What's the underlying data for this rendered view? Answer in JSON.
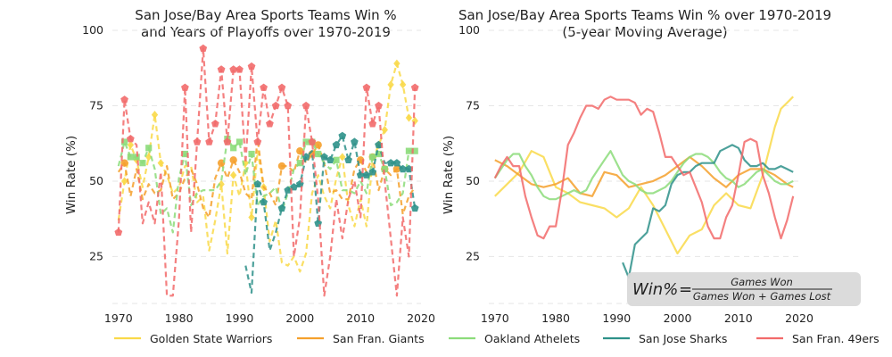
{
  "chart_data": [
    {
      "type": "line",
      "title_lines": [
        "San Jose/Bay Area Sports Teams Win %",
        "and Years of Playoffs over 1970-2019"
      ],
      "xlabel": "",
      "ylabel": "Win Rate (%)",
      "xlim": [
        1969,
        2020
      ],
      "ylim": [
        5,
        100
      ],
      "xticks": [
        1970,
        1980,
        1990,
        2000,
        2010,
        2020
      ],
      "yticks": [
        25,
        50,
        75,
        100
      ],
      "line_style": "dashed",
      "markers_note": "filled markers mark playoff years",
      "series": [
        {
          "name": "Golden State Warriors",
          "color": "#f9d949",
          "marker": "diamond",
          "x": [
            1970,
            1971,
            1972,
            1973,
            1974,
            1975,
            1976,
            1977,
            1978,
            1979,
            1980,
            1981,
            1982,
            1983,
            1984,
            1985,
            1986,
            1987,
            1988,
            1989,
            1990,
            1991,
            1992,
            1993,
            1994,
            1995,
            1996,
            1997,
            1998,
            1999,
            2000,
            2001,
            2002,
            2003,
            2004,
            2005,
            2006,
            2007,
            2008,
            2009,
            2010,
            2011,
            2012,
            2013,
            2014,
            2015,
            2016,
            2017,
            2018,
            2019
          ],
          "y": [
            37,
            50,
            62,
            57,
            48,
            58,
            72,
            56,
            52,
            46,
            48,
            55,
            55,
            43,
            45,
            27,
            37,
            49,
            26,
            52,
            45,
            56,
            38,
            60,
            48,
            30,
            37,
            23,
            22,
            25,
            20,
            26,
            46,
            52,
            45,
            41,
            51,
            58,
            42,
            35,
            44,
            35,
            57,
            62,
            67,
            82,
            89,
            82,
            71,
            70
          ],
          "playoff_years": [
            1971,
            1972,
            1973,
            1975,
            1976,
            1977,
            1987,
            1989,
            1991,
            1992,
            1994,
            2007,
            2013,
            2014,
            2015,
            2016,
            2017,
            2018,
            2019
          ]
        },
        {
          "name": "San Fran. Giants",
          "color": "#f5a02c",
          "marker": "circle",
          "x": [
            1970,
            1971,
            1972,
            1973,
            1974,
            1975,
            1976,
            1977,
            1978,
            1979,
            1980,
            1981,
            1982,
            1983,
            1984,
            1985,
            1986,
            1987,
            1988,
            1989,
            1990,
            1991,
            1992,
            1993,
            1994,
            1995,
            1996,
            1997,
            1998,
            1999,
            2000,
            2001,
            2002,
            2003,
            2004,
            2005,
            2006,
            2007,
            2008,
            2009,
            2010,
            2011,
            2012,
            2013,
            2014,
            2015,
            2016,
            2017,
            2018,
            2019
          ],
          "y": [
            53,
            56,
            45,
            54,
            44,
            49,
            46,
            47,
            55,
            44,
            46,
            51,
            54,
            49,
            41,
            38,
            51,
            56,
            51,
            57,
            53,
            46,
            44,
            64,
            48,
            46,
            42,
            55,
            55,
            53,
            60,
            56,
            59,
            62,
            56,
            46,
            47,
            44,
            44,
            54,
            57,
            53,
            58,
            47,
            54,
            52,
            54,
            39,
            45,
            48
          ],
          "playoff_years": [
            1971,
            1987,
            1989,
            1997,
            2000,
            2002,
            2003,
            2010,
            2012,
            2014,
            2016
          ]
        },
        {
          "name": "Oakland Athelets",
          "color": "#8cdc7a",
          "marker": "square",
          "x": [
            1970,
            1971,
            1972,
            1973,
            1974,
            1975,
            1976,
            1977,
            1978,
            1979,
            1980,
            1981,
            1982,
            1983,
            1984,
            1985,
            1986,
            1987,
            1988,
            1989,
            1990,
            1991,
            1992,
            1993,
            1994,
            1995,
            1996,
            1997,
            1998,
            1999,
            2000,
            2001,
            2002,
            2003,
            2004,
            2005,
            2006,
            2007,
            2008,
            2009,
            2010,
            2011,
            2012,
            2013,
            2014,
            2015,
            2016,
            2017,
            2018,
            2019
          ],
          "y": [
            55,
            63,
            58,
            58,
            56,
            61,
            54,
            39,
            41,
            33,
            51,
            59,
            42,
            46,
            47,
            47,
            47,
            50,
            64,
            61,
            63,
            52,
            59,
            42,
            45,
            46,
            48,
            40,
            46,
            54,
            56,
            63,
            63,
            59,
            56,
            54,
            57,
            47,
            47,
            46,
            50,
            46,
            58,
            59,
            54,
            42,
            43,
            46,
            60,
            60
          ],
          "playoff_years": [
            1971,
            1972,
            1973,
            1974,
            1975,
            1981,
            1988,
            1989,
            1990,
            1992,
            2000,
            2001,
            2002,
            2003,
            2006,
            2012,
            2013,
            2014,
            2018,
            2019
          ]
        },
        {
          "name": "San Jose Sharks",
          "color": "#2e9189",
          "marker": "pentagon",
          "x": [
            1991,
            1992,
            1993,
            1994,
            1995,
            1996,
            1997,
            1998,
            1999,
            2000,
            2001,
            2002,
            2003,
            2004,
            2005,
            2006,
            2007,
            2008,
            2009,
            2010,
            2011,
            2012,
            2013,
            2014,
            2015,
            2016,
            2017,
            2018,
            2019
          ],
          "y": [
            22,
            13,
            49,
            43,
            27,
            33,
            41,
            47,
            48,
            49,
            58,
            60,
            36,
            58,
            57,
            62,
            65,
            57,
            63,
            52,
            52,
            53,
            62,
            56,
            56,
            56,
            54,
            54,
            41
          ],
          "playoff_years": [
            1993,
            1994,
            1997,
            1998,
            1999,
            2000,
            2001,
            2003,
            2004,
            2005,
            2006,
            2007,
            2008,
            2009,
            2010,
            2011,
            2012,
            2013,
            2015,
            2016,
            2017,
            2018,
            2019
          ]
        },
        {
          "name": "San Fran. 49ers",
          "color": "#f26a6a",
          "marker": "pentagon",
          "x": [
            1970,
            1971,
            1972,
            1973,
            1974,
            1975,
            1976,
            1977,
            1978,
            1979,
            1980,
            1981,
            1982,
            1983,
            1984,
            1985,
            1986,
            1987,
            1988,
            1989,
            1990,
            1991,
            1992,
            1993,
            1994,
            1995,
            1996,
            1997,
            1998,
            1999,
            2000,
            2001,
            2002,
            2003,
            2004,
            2005,
            2006,
            2007,
            2008,
            2009,
            2010,
            2011,
            2012,
            2013,
            2014,
            2015,
            2016,
            2017,
            2018,
            2019
          ],
          "y": [
            33,
            77,
            64,
            62,
            36,
            43,
            36,
            53,
            12,
            12,
            37,
            81,
            33,
            63,
            94,
            63,
            69,
            87,
            63,
            87,
            87,
            56,
            88,
            63,
            81,
            69,
            75,
            81,
            75,
            25,
            38,
            75,
            63,
            44,
            12,
            25,
            44,
            31,
            44,
            50,
            38,
            81,
            69,
            75,
            50,
            31,
            12,
            38,
            25,
            81
          ],
          "playoff_years": [
            1970,
            1971,
            1972,
            1981,
            1983,
            1984,
            1985,
            1986,
            1987,
            1988,
            1989,
            1990,
            1992,
            1993,
            1994,
            1995,
            1996,
            1997,
            1998,
            2001,
            2002,
            2011,
            2012,
            2013,
            2019
          ]
        }
      ]
    },
    {
      "type": "line",
      "title_lines": [
        "San Jose/Bay Area Sports Teams Win % over 1970-2019",
        "(5-year Moving Average)"
      ],
      "xlabel": "",
      "ylabel": "Win Rate (%)",
      "xlim": [
        1969,
        2020
      ],
      "ylim": [
        5,
        100
      ],
      "xticks": [
        1970,
        1980,
        1990,
        2000,
        2010,
        2020
      ],
      "yticks": [
        25,
        50,
        75,
        100
      ],
      "line_style": "solid",
      "series": [
        {
          "name": "Golden State Warriors",
          "color": "#f9d949",
          "x": [
            1970,
            1972,
            1974,
            1976,
            1978,
            1980,
            1982,
            1984,
            1986,
            1988,
            1990,
            1992,
            1994,
            1996,
            1998,
            2000,
            2002,
            2004,
            2006,
            2008,
            2010,
            2012,
            2014,
            2016,
            2017,
            2018,
            2019
          ],
          "y": [
            45,
            49,
            53,
            60,
            58,
            48,
            46,
            43,
            42,
            41,
            38,
            41,
            48,
            42,
            34,
            26,
            32,
            34,
            42,
            46,
            42,
            41,
            52,
            68,
            74,
            76,
            78
          ]
        },
        {
          "name": "San Fran. Giants",
          "color": "#f5a02c",
          "x": [
            1970,
            1972,
            1974,
            1976,
            1978,
            1980,
            1982,
            1984,
            1986,
            1988,
            1990,
            1992,
            1994,
            1996,
            1998,
            2000,
            2002,
            2004,
            2006,
            2008,
            2010,
            2012,
            2014,
            2016,
            2018,
            2019
          ],
          "y": [
            57,
            55,
            52,
            49,
            48,
            49,
            51,
            46,
            45,
            53,
            52,
            48,
            49,
            50,
            52,
            55,
            58,
            55,
            51,
            48,
            52,
            54,
            54,
            52,
            49,
            48
          ]
        },
        {
          "name": "Oakland Athelets",
          "color": "#8cdc7a",
          "x": [
            1970,
            1971,
            1972,
            1973,
            1974,
            1975,
            1976,
            1977,
            1978,
            1979,
            1980,
            1981,
            1982,
            1983,
            1984,
            1985,
            1986,
            1987,
            1988,
            1989,
            1990,
            1991,
            1992,
            1993,
            1994,
            1995,
            1996,
            1997,
            1998,
            1999,
            2000,
            2001,
            2002,
            2003,
            2004,
            2005,
            2006,
            2007,
            2008,
            2009,
            2010,
            2011,
            2012,
            2013,
            2014,
            2015,
            2016,
            2017,
            2018,
            2019
          ],
          "y": [
            51,
            54,
            57,
            59,
            59,
            55,
            52,
            48,
            45,
            44,
            44,
            45,
            46,
            47,
            46,
            47,
            51,
            54,
            57,
            60,
            56,
            52,
            50,
            49,
            47,
            46,
            46,
            47,
            48,
            50,
            53,
            56,
            58,
            59,
            59,
            58,
            56,
            53,
            51,
            50,
            48,
            49,
            51,
            53,
            54,
            52,
            50,
            49,
            49,
            50
          ]
        },
        {
          "name": "San Jose Sharks",
          "color": "#2e9189",
          "x": [
            1991,
            1992,
            1993,
            1994,
            1995,
            1996,
            1997,
            1998,
            1999,
            2000,
            2001,
            2002,
            2003,
            2004,
            2005,
            2006,
            2007,
            2008,
            2009,
            2010,
            2011,
            2012,
            2013,
            2014,
            2015,
            2016,
            2017,
            2018,
            2019
          ],
          "y": [
            23,
            18,
            29,
            31,
            33,
            41,
            40,
            42,
            49,
            52,
            53,
            53,
            55,
            56,
            56,
            56,
            60,
            61,
            62,
            61,
            57,
            55,
            55,
            56,
            54,
            54,
            55,
            54,
            53
          ]
        },
        {
          "name": "San Fran. 49ers",
          "color": "#f26a6a",
          "x": [
            1970,
            1971,
            1972,
            1973,
            1974,
            1975,
            1976,
            1977,
            1978,
            1979,
            1980,
            1981,
            1982,
            1983,
            1984,
            1985,
            1986,
            1987,
            1988,
            1989,
            1990,
            1991,
            1992,
            1993,
            1994,
            1995,
            1996,
            1997,
            1998,
            1999,
            2000,
            2001,
            2002,
            2003,
            2004,
            2005,
            2006,
            2007,
            2008,
            2009,
            2010,
            2011,
            2012,
            2013,
            2014,
            2015,
            2016,
            2017,
            2018,
            2019
          ],
          "y": [
            51,
            55,
            58,
            55,
            55,
            45,
            38,
            32,
            31,
            35,
            35,
            47,
            62,
            66,
            71,
            75,
            75,
            74,
            77,
            78,
            77,
            77,
            77,
            76,
            72,
            74,
            73,
            66,
            58,
            58,
            55,
            52,
            53,
            48,
            43,
            35,
            31,
            31,
            38,
            42,
            52,
            63,
            64,
            63,
            52,
            46,
            38,
            31,
            37,
            45
          ]
        }
      ]
    }
  ],
  "legend": [
    {
      "label": "Golden State Warriors",
      "color": "#f9d949"
    },
    {
      "label": "San Fran. Giants",
      "color": "#f5a02c"
    },
    {
      "label": "Oakland Athelets",
      "color": "#8cdc7a"
    },
    {
      "label": "San Jose Sharks",
      "color": "#2e9189"
    },
    {
      "label": "San Fran. 49ers",
      "color": "#f26a6a"
    }
  ],
  "formula": {
    "lhs": "Win%",
    "eq": "=",
    "numerator": "Games Won",
    "denominator": "Games Won + Games Lost"
  }
}
